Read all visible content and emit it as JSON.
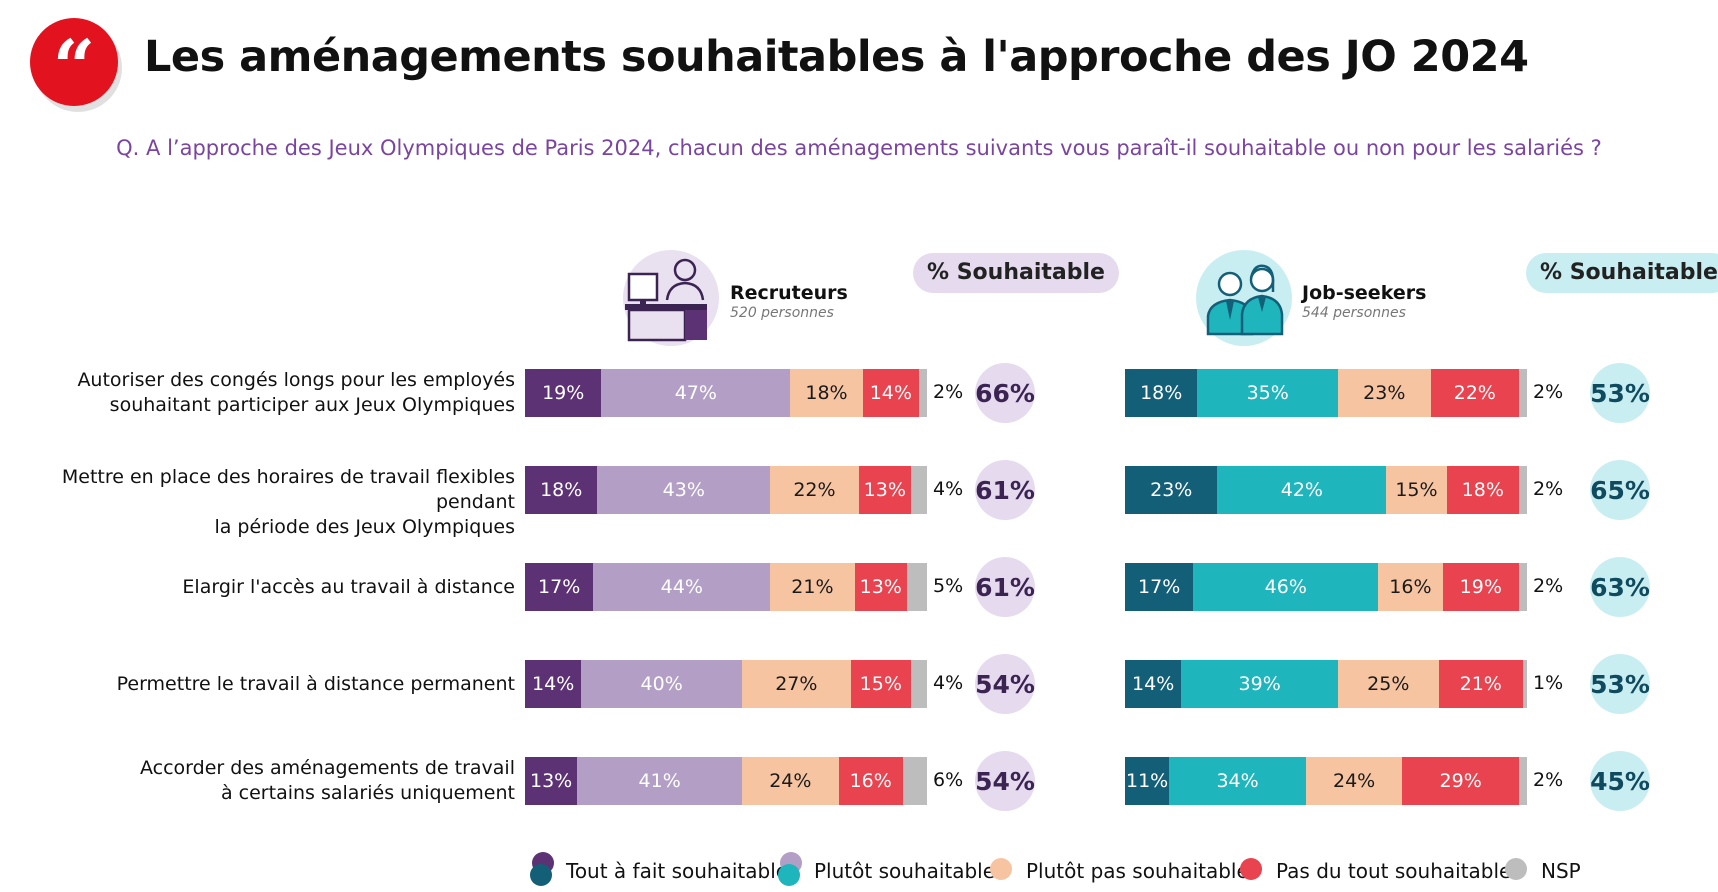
{
  "title": "Les aménagements souhaitables à l'approche des JO 2024",
  "logo_glyph": "“",
  "question": "Q. A l’approche des Jeux Olympiques de Paris 2024, chacun des aménagements suivants vous paraît-il souhaitable ou non pour les salariés ?",
  "groups": [
    {
      "name": "Recruteurs",
      "count": "520 personnes",
      "pill": "% Souhaitable",
      "icon": "recruiter-desk-icon"
    },
    {
      "name": "Job-seekers",
      "count": "544 personnes",
      "pill": "% Souhaitable",
      "icon": "job-seekers-icon"
    }
  ],
  "colors": {
    "recruteurs": [
      "#5d3275",
      "#b39fc6",
      "#f7c4a2",
      "#e8434f",
      "#bdbdbd"
    ],
    "jobseekers": [
      "#135f78",
      "#1eb5bd",
      "#f7c4a2",
      "#e8434f",
      "#bdbdbd"
    ],
    "circle_recruteurs": "#e6daef",
    "circle_jobseekers": "#c9eef2",
    "question": "#7a45a0",
    "logo": "#e3121f"
  },
  "chart_data": {
    "type": "bar",
    "orientation": "horizontal-stacked",
    "categories": [
      [
        "Autoriser des congés longs pour les employés",
        "souhaitant participer aux Jeux Olympiques"
      ],
      [
        "Mettre en place des horaires de travail flexibles pendant",
        "la période des Jeux Olympiques"
      ],
      [
        "Elargir l'accès au travail à distance"
      ],
      [
        "Permettre le travail à distance permanent"
      ],
      [
        "Accorder des aménagements de travail",
        "à certains salariés uniquement"
      ]
    ],
    "legend": [
      "Tout à fait souhaitable",
      "Plutôt souhaitable",
      "Plutôt pas souhaitable",
      "Pas du tout souhaitable",
      "NSP"
    ],
    "panels": [
      {
        "group": "Recruteurs",
        "values": [
          [
            19,
            47,
            18,
            14,
            2
          ],
          [
            18,
            43,
            22,
            13,
            4
          ],
          [
            17,
            44,
            21,
            13,
            5
          ],
          [
            14,
            40,
            27,
            15,
            4
          ],
          [
            13,
            41,
            24,
            16,
            6
          ]
        ],
        "souhaitable": [
          66,
          61,
          61,
          54,
          54
        ]
      },
      {
        "group": "Job-seekers",
        "values": [
          [
            18,
            35,
            23,
            22,
            2
          ],
          [
            23,
            42,
            15,
            18,
            2
          ],
          [
            17,
            46,
            16,
            19,
            2
          ],
          [
            14,
            39,
            25,
            21,
            1
          ],
          [
            11,
            34,
            24,
            29,
            2
          ]
        ],
        "souhaitable": [
          53,
          65,
          63,
          53,
          45
        ]
      }
    ],
    "value_suffix": "%"
  }
}
